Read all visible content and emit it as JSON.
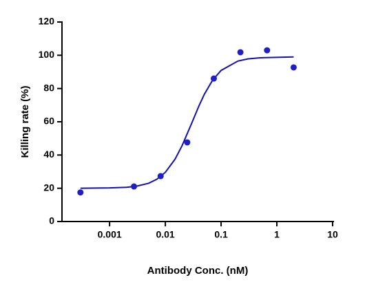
{
  "chart_data": {
    "type": "scatter",
    "x_label": "Antibody Conc. (nM)",
    "y_label": "Killing rate (%)",
    "x_log": true,
    "xlim": [
      0.00014,
      10
    ],
    "xticks": [
      0.001,
      0.01,
      0.1,
      1,
      10
    ],
    "ylim": [
      0,
      120
    ],
    "yticks": [
      0,
      20,
      40,
      60,
      80,
      100,
      120
    ],
    "points": {
      "color": "#1f1fc8",
      "x": [
        0.0003,
        0.00274,
        0.00823,
        0.0247,
        0.074,
        0.222,
        0.667,
        2
      ],
      "values": [
        17.5,
        21.1,
        27.3,
        47.6,
        86,
        101.8,
        103,
        92.7
      ]
    },
    "curve": {
      "color": "#1010b8",
      "x": [
        0.0003,
        0.001,
        0.002,
        0.003,
        0.005,
        0.007,
        0.01,
        0.015,
        0.02,
        0.03,
        0.04,
        0.05,
        0.07,
        0.1,
        0.2,
        0.3,
        0.5,
        2
      ],
      "values": [
        20,
        20.2,
        20.6,
        21.2,
        23,
        25.4,
        29.6,
        37.6,
        45.7,
        59.5,
        69.5,
        76.5,
        84.9,
        90.9,
        96.5,
        97.8,
        98.5,
        99
      ]
    }
  }
}
